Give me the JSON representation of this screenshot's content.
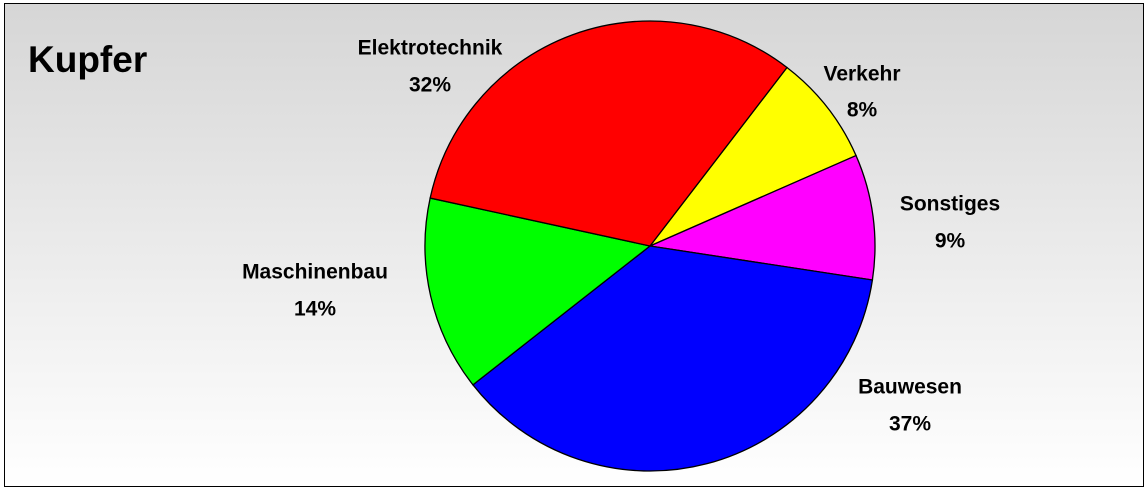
{
  "chart_data": {
    "type": "pie",
    "title": "Kupfer",
    "categories": [
      "Verkehr",
      "Sonstiges",
      "Bauwesen",
      "Maschinenbau",
      "Elektrotechnik"
    ],
    "values": [
      8,
      9,
      37,
      14,
      32
    ],
    "value_labels": [
      "8%",
      "9%",
      "37%",
      "14%",
      "32%"
    ],
    "colors": [
      "#ffff00",
      "#ff00ff",
      "#0000ff",
      "#00ff00",
      "#ff0000"
    ]
  }
}
